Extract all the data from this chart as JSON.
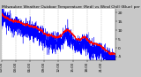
{
  "title": "Milwaukee Weather Outdoor Temperature (Red) vs Wind Chill (Blue) per Minute (24 Hours)",
  "bg_color": "#c8c8c8",
  "plot_bg_color": "#ffffff",
  "line_color_temp": "#ff0000",
  "line_color_wc": "#0000ff",
  "ylim": [
    -7,
    22
  ],
  "xlim": [
    0,
    1439
  ],
  "n_points": 1440,
  "seed": 42,
  "grid_color": "#999999",
  "tick_color": "#000000",
  "title_fontsize": 3.2,
  "ytick_fontsize": 3.2,
  "xtick_fontsize": 2.8,
  "yticks": [
    -5,
    0,
    5,
    10,
    15,
    20
  ],
  "n_vgridlines": 8
}
